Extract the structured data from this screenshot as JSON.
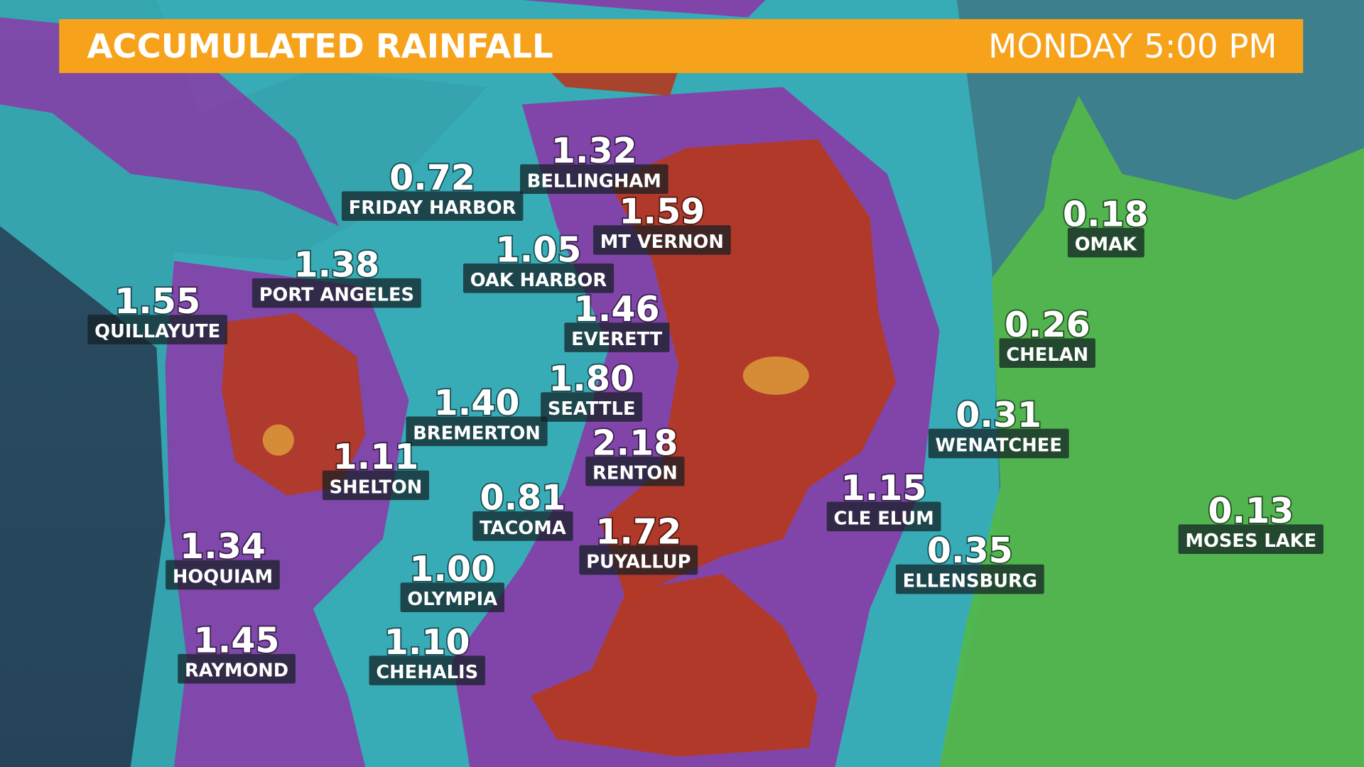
{
  "header": {
    "title": "ACCUMULATED RAINFALL",
    "day": "MONDAY",
    "time": "5:00 PM"
  },
  "stations": [
    {
      "name": "BELLINGHAM",
      "value": "1.32"
    },
    {
      "name": "FRIDAY HARBOR",
      "value": "0.72"
    },
    {
      "name": "MT VERNON",
      "value": "1.59"
    },
    {
      "name": "OAK HARBOR",
      "value": "1.05"
    },
    {
      "name": "PORT ANGELES",
      "value": "1.38"
    },
    {
      "name": "QUILLAYUTE",
      "value": "1.55"
    },
    {
      "name": "EVERETT",
      "value": "1.46"
    },
    {
      "name": "SEATTLE",
      "value": "1.80"
    },
    {
      "name": "BREMERTON",
      "value": "1.40"
    },
    {
      "name": "RENTON",
      "value": "2.18"
    },
    {
      "name": "SHELTON",
      "value": "1.11"
    },
    {
      "name": "TACOMA",
      "value": "0.81"
    },
    {
      "name": "PUYALLUP",
      "value": "1.72"
    },
    {
      "name": "HOQUIAM",
      "value": "1.34"
    },
    {
      "name": "OLYMPIA",
      "value": "1.00"
    },
    {
      "name": "RAYMOND",
      "value": "1.45"
    },
    {
      "name": "CHEHALIS",
      "value": "1.10"
    },
    {
      "name": "OMAK",
      "value": "0.18"
    },
    {
      "name": "CHELAN",
      "value": "0.26"
    },
    {
      "name": "WENATCHEE",
      "value": "0.31"
    },
    {
      "name": "CLE ELUM",
      "value": "1.15"
    },
    {
      "name": "ELLENSBURG",
      "value": "0.35"
    },
    {
      "name": "MOSES LAKE",
      "value": "0.13"
    }
  ]
}
